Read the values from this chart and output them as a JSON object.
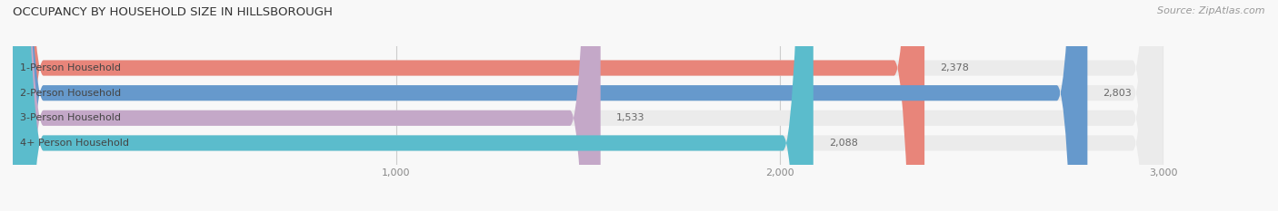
{
  "title": "OCCUPANCY BY HOUSEHOLD SIZE IN HILLSBOROUGH",
  "source": "Source: ZipAtlas.com",
  "categories": [
    "1-Person Household",
    "2-Person Household",
    "3-Person Household",
    "4+ Person Household"
  ],
  "values": [
    2378,
    2803,
    1533,
    2088
  ],
  "bar_colors": [
    "#E8857A",
    "#6699CC",
    "#C4A8C8",
    "#5BBCCC"
  ],
  "bar_bg_color": "#EBEBEB",
  "xlim": [
    0,
    3000
  ],
  "xticks": [
    0,
    1000,
    2000,
    3000
  ],
  "xtick_labels": [
    "",
    "1,000",
    "2,000",
    "3,000"
  ],
  "title_color": "#333333",
  "value_label_color": "#666666",
  "cat_label_color": "#444444",
  "bar_height": 0.62,
  "figsize": [
    14.06,
    2.33
  ],
  "dpi": 100
}
